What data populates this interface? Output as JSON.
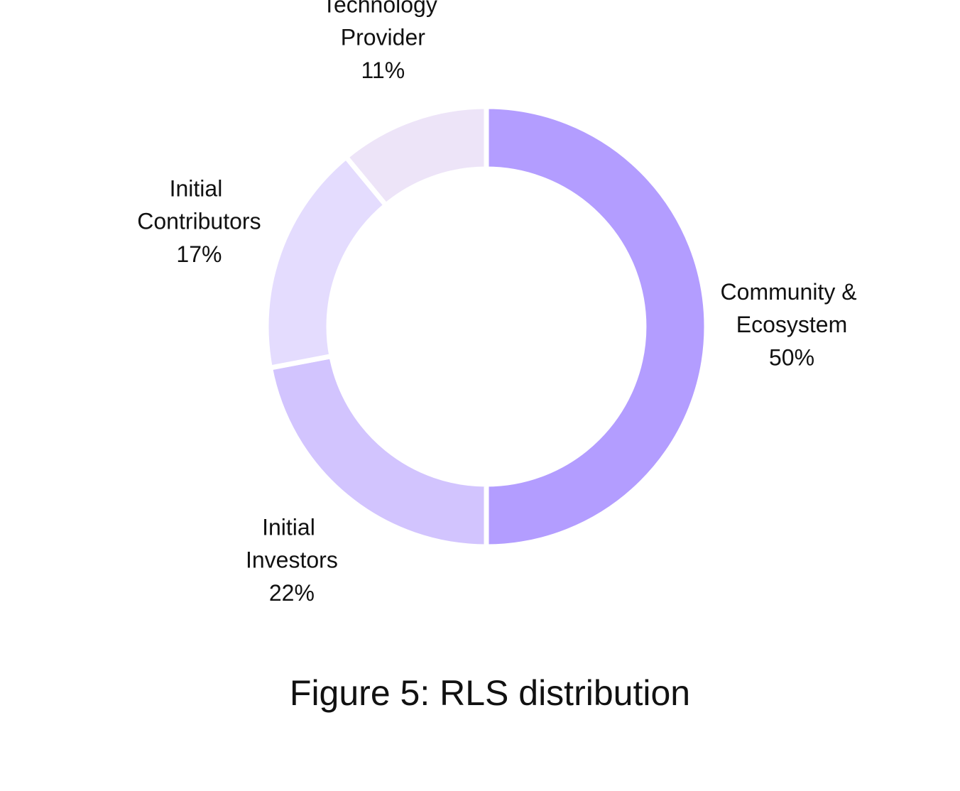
{
  "chart_data": {
    "type": "donut",
    "title": "Figure 5: RLS distribution",
    "categories": [
      "Community & Ecosystem",
      "Initial Investors",
      "Initial Contributors",
      "Technology Provider"
    ],
    "values": [
      50,
      22,
      17,
      11
    ],
    "value_labels": [
      "50%",
      "22%",
      "17%",
      "11%"
    ],
    "colors": [
      "#b39dff",
      "#d2c4fe",
      "#e4dcfe",
      "#ede4f8"
    ]
  }
}
